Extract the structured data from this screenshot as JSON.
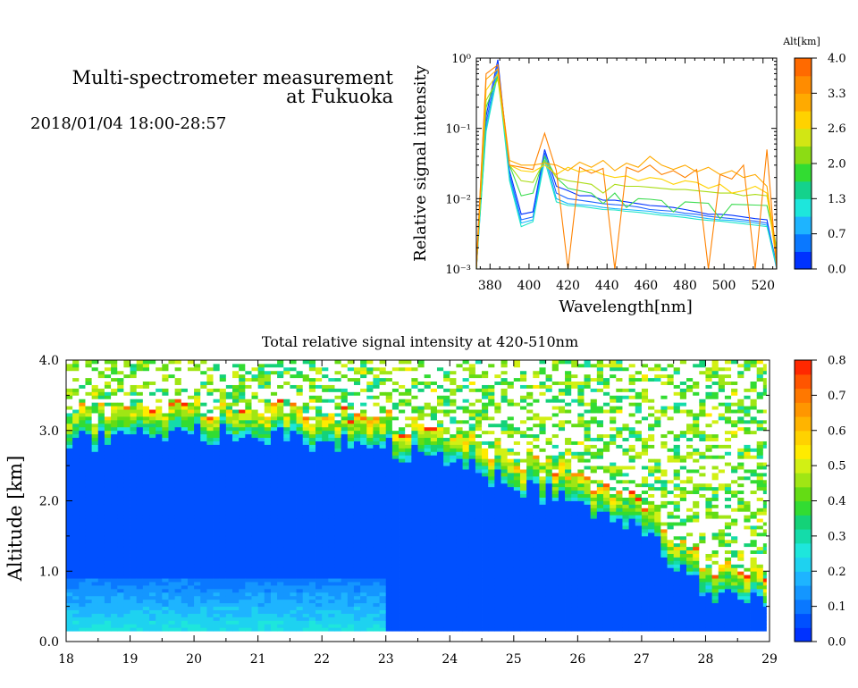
{
  "header": {
    "title_line1": "Multi-spectrometer measurement",
    "title_line2": "at Fukuoka",
    "date_range": "2018/01/04 18:00-28:57"
  },
  "chart_data": [
    {
      "type": "line",
      "xlabel": "Wavelength[nm]",
      "ylabel": "Relative signal intensity",
      "yscale": "log",
      "xlim": [
        373,
        527
      ],
      "ylim": [
        0.001,
        1
      ],
      "xticks": [
        380,
        400,
        420,
        440,
        460,
        480,
        500,
        520
      ],
      "yticks": [
        {
          "value": 0.001,
          "label": "10⁻³"
        },
        {
          "value": 0.01,
          "label": "10⁻²"
        },
        {
          "value": 0.1,
          "label": "10⁻¹"
        },
        {
          "value": 1,
          "label": "10⁰"
        }
      ],
      "x": [
        373,
        378,
        384,
        390,
        396,
        402,
        408,
        414,
        420,
        426,
        432,
        438,
        444,
        450,
        456,
        462,
        468,
        474,
        480,
        486,
        492,
        498,
        504,
        510,
        516,
        522,
        527
      ],
      "colorbar": {
        "title": "Alt[km]",
        "tick_labels": [
          "0.0",
          "0.7",
          "1.3",
          "2.0",
          "2.6",
          "3.3",
          "4.0"
        ],
        "colors": [
          "#0032ff",
          "#0a78ff",
          "#1eb4ff",
          "#1ee6dc",
          "#14d28c",
          "#32dc32",
          "#8cdc14",
          "#d2e614",
          "#ffd200",
          "#ffaa00",
          "#ff8c00",
          "#ff6a00"
        ]
      },
      "series": [
        {
          "color": "#0032ff",
          "values": [
            0.001,
            0.15,
            0.95,
            0.025,
            0.006,
            0.0065,
            0.05,
            0.015,
            0.013,
            0.011,
            0.011,
            0.0095,
            0.0095,
            0.009,
            0.0085,
            0.008,
            0.0078,
            0.0075,
            0.007,
            0.0065,
            0.006,
            0.006,
            0.0058,
            0.0055,
            0.0052,
            0.005,
            0.0011
          ]
        },
        {
          "color": "#1e64ff",
          "values": [
            0.0012,
            0.12,
            0.8,
            0.022,
            0.005,
            0.0055,
            0.045,
            0.012,
            0.01,
            0.0095,
            0.009,
            0.0085,
            0.0082,
            0.008,
            0.0076,
            0.007,
            0.0068,
            0.0066,
            0.0062,
            0.006,
            0.0056,
            0.0054,
            0.0052,
            0.005,
            0.0048,
            0.0045,
            0.0012
          ]
        },
        {
          "color": "#14b4ff",
          "values": [
            0.001,
            0.1,
            0.7,
            0.02,
            0.0045,
            0.005,
            0.04,
            0.01,
            0.0085,
            0.0082,
            0.008,
            0.0075,
            0.0072,
            0.007,
            0.0068,
            0.0066,
            0.0062,
            0.006,
            0.0058,
            0.0055,
            0.0052,
            0.005,
            0.0049,
            0.0047,
            0.0045,
            0.0042,
            0.001
          ]
        },
        {
          "color": "#1ee6c8",
          "values": [
            0.0011,
            0.09,
            0.6,
            0.018,
            0.004,
            0.0047,
            0.035,
            0.009,
            0.008,
            0.0078,
            0.0074,
            0.007,
            0.0069,
            0.0066,
            0.0064,
            0.0061,
            0.0058,
            0.0056,
            0.0054,
            0.0051,
            0.0049,
            0.0048,
            0.0046,
            0.0044,
            0.0042,
            0.004,
            0.0011
          ]
        },
        {
          "color": "#3cdc50",
          "values": [
            0.001,
            0.2,
            0.55,
            0.03,
            0.011,
            0.012,
            0.04,
            0.02,
            0.014,
            0.013,
            0.012,
            0.0085,
            0.012,
            0.0075,
            0.01,
            0.0098,
            0.0094,
            0.0065,
            0.009,
            0.0088,
            0.0086,
            0.0052,
            0.0083,
            0.0082,
            0.0081,
            0.008,
            0.002
          ]
        },
        {
          "color": "#aadc14",
          "values": [
            0.001,
            0.25,
            0.5,
            0.03,
            0.018,
            0.017,
            0.035,
            0.02,
            0.018,
            0.017,
            0.016,
            0.012,
            0.016,
            0.015,
            0.015,
            0.0145,
            0.014,
            0.0135,
            0.0135,
            0.013,
            0.0125,
            0.012,
            0.012,
            0.011,
            0.0115,
            0.011,
            0.002
          ]
        },
        {
          "color": "#ffd200",
          "values": [
            0.001,
            0.35,
            0.6,
            0.03,
            0.025,
            0.024,
            0.03,
            0.022,
            0.028,
            0.024,
            0.026,
            0.022,
            0.02,
            0.021,
            0.018,
            0.02,
            0.019,
            0.016,
            0.018,
            0.017,
            0.014,
            0.016,
            0.012,
            0.013,
            0.015,
            0.012,
            0.0012
          ]
        },
        {
          "color": "#ffaa00",
          "values": [
            0.0012,
            0.5,
            0.7,
            0.035,
            0.03,
            0.03,
            0.032,
            0.03,
            0.025,
            0.033,
            0.028,
            0.035,
            0.025,
            0.032,
            0.028,
            0.04,
            0.03,
            0.026,
            0.03,
            0.024,
            0.028,
            0.022,
            0.025,
            0.02,
            0.022,
            0.015,
            0.0015
          ]
        },
        {
          "color": "#ff8200",
          "values": [
            0.001,
            0.6,
            0.8,
            0.03,
            0.028,
            0.026,
            0.085,
            0.025,
            0.001,
            0.028,
            0.023,
            0.027,
            0.001,
            0.028,
            0.024,
            0.03,
            0.022,
            0.025,
            0.02,
            0.026,
            0.001,
            0.022,
            0.019,
            0.03,
            0.001,
            0.05,
            0.001
          ]
        }
      ]
    },
    {
      "type": "heatmap",
      "title": "Total relative signal intensity at 420-510nm",
      "ylabel": "Altitude [km]",
      "xlim": [
        18,
        29
      ],
      "ylim": [
        0,
        4
      ],
      "xticks": [
        18,
        19,
        20,
        21,
        22,
        23,
        24,
        25,
        26,
        27,
        28,
        29
      ],
      "yticks": [
        {
          "value": 0,
          "label": "0.0"
        },
        {
          "value": 1,
          "label": "1.0"
        },
        {
          "value": 2,
          "label": "2.0"
        },
        {
          "value": 3,
          "label": "3.0"
        },
        {
          "value": 4,
          "label": "4.0"
        }
      ],
      "data_time_range": [
        18,
        28.95
      ],
      "data_alt_range": [
        0.15,
        4.0
      ],
      "profile_times": [
        18,
        19,
        20,
        21,
        22,
        23,
        24,
        25,
        26,
        27,
        28,
        28.95
      ],
      "cloud_base_km": [
        3.2,
        3.2,
        3.3,
        3.3,
        3.2,
        3.1,
        2.9,
        2.6,
        2.3,
        2.0,
        1.0,
        0.9
      ],
      "colorbar": {
        "tick_labels": [
          "0.0",
          "0.1",
          "0.2",
          "0.3",
          "0.4",
          "0.5",
          "0.6",
          "0.7",
          "0.8"
        ],
        "colors": [
          "#0032ff",
          "#0050ff",
          "#0a78ff",
          "#1496ff",
          "#1eb4ff",
          "#1ed2f0",
          "#1ee6dc",
          "#14dcaa",
          "#14d278",
          "#32dc32",
          "#64dc14",
          "#a0e614",
          "#d2f014",
          "#ffeb00",
          "#ffd200",
          "#ffb400",
          "#ff9600",
          "#ff7800",
          "#ff5500",
          "#ff2800"
        ]
      }
    }
  ]
}
